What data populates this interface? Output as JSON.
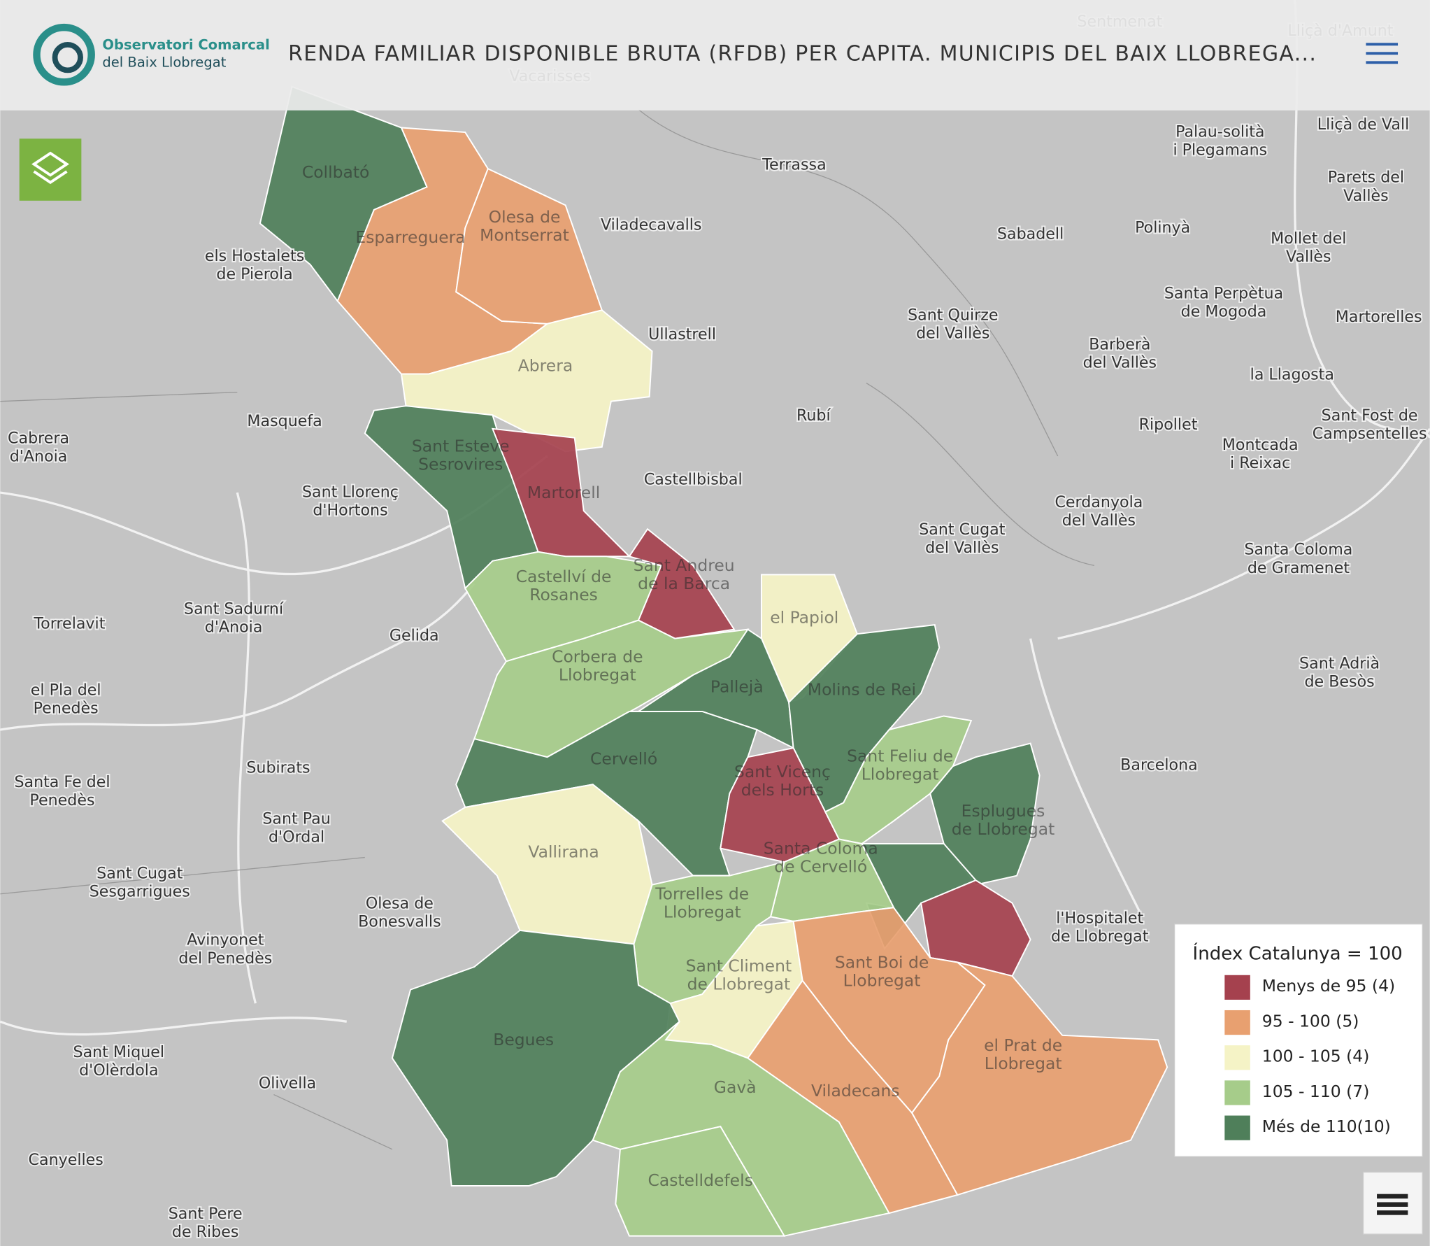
{
  "header": {
    "logo": [
      "Observatori Comarcal",
      "del Baix Llobregat"
    ],
    "title": "RENDA FAMILIAR DISPONIBLE BRUTA (RFDB) PER CAPITA. MUNICIPIS DEL BAIX LLOBREGA..."
  },
  "legend": {
    "title": "Índex Catalunya = 100",
    "items": [
      {
        "label": "Menys de 95 (4)",
        "color": "#a5414e"
      },
      {
        "label": "95 - 100 (5)",
        "color": "#e8a070"
      },
      {
        "label": "100 - 105 (4)",
        "color": "#f5f3c6"
      },
      {
        "label": "105 - 110 (7)",
        "color": "#a6cc8a"
      },
      {
        "label": "Més de 110(10)",
        "color": "#4f7f5a"
      }
    ]
  },
  "regions": [
    {
      "name": [
        "Collbató"
      ],
      "class": 4
    },
    {
      "name": [
        "Esparreguera"
      ],
      "class": 1
    },
    {
      "name": [
        "Olesa de",
        "Montserrat"
      ],
      "class": 1
    },
    {
      "name": [
        "Abrera"
      ],
      "class": 2
    },
    {
      "name": [
        "Sant Esteve",
        "Sesrovires"
      ],
      "class": 4
    },
    {
      "name": [
        "Martorell"
      ],
      "class": 0
    },
    {
      "name": [
        "Sant Andreu",
        "de la Barca"
      ],
      "class": 0
    },
    {
      "name": [
        "Castellví de",
        "Rosanes"
      ],
      "class": 3
    },
    {
      "name": [
        "Corbera de",
        "Llobregat"
      ],
      "class": 3
    },
    {
      "name": [
        "el Papiol"
      ],
      "class": 2
    },
    {
      "name": [
        "Pallejà"
      ],
      "class": 4
    },
    {
      "name": [
        "Molins de Rei"
      ],
      "class": 4
    },
    {
      "name": [
        "Cervelló"
      ],
      "class": 4
    },
    {
      "name": [
        "Sant Vicenç",
        "dels Horts"
      ],
      "class": 0
    },
    {
      "name": [
        "Sant Feliu de",
        "Llobregat"
      ],
      "class": 3
    },
    {
      "name": [
        "Esplugues",
        "de Llobregat"
      ],
      "class": 4
    },
    {
      "name": null,
      "class": 4
    },
    {
      "name": null,
      "class": 0
    },
    {
      "name": [
        "Santa Coloma",
        "de Cervelló"
      ],
      "class": 3
    },
    {
      "name": [
        "Vallirana"
      ],
      "class": 2
    },
    {
      "name": [
        "Torrelles de",
        "Llobregat"
      ],
      "class": 3
    },
    {
      "name": [
        "Sant Climent",
        "de Llobregat"
      ],
      "class": 2
    },
    {
      "name": [
        "Begues"
      ],
      "class": 4
    },
    {
      "name": [
        "Gavà"
      ],
      "class": 3
    },
    {
      "name": [
        "Castelldefels"
      ],
      "class": 3
    },
    {
      "name": [
        "Viladecans"
      ],
      "class": 1
    },
    {
      "name": [
        "Sant Boi de",
        "Llobregat"
      ],
      "class": 1
    },
    {
      "name": [
        "el Prat de",
        "Llobregat"
      ],
      "class": 1
    }
  ],
  "places": [
    {
      "name": [
        "Terrassa"
      ]
    },
    {
      "name": [
        "Viladecavalls"
      ]
    },
    {
      "name": [
        "Sabadell"
      ]
    },
    {
      "name": [
        "Polinyà"
      ]
    },
    {
      "name": [
        "Palau-solità",
        "i Plegamans"
      ]
    },
    {
      "name": [
        "Lliçà de Vall"
      ]
    },
    {
      "name": [
        "Parets del",
        "Vallès"
      ]
    },
    {
      "name": [
        "Mollet del",
        "Vallès"
      ]
    },
    {
      "name": [
        "els Hostalets",
        "de Pierola"
      ]
    },
    {
      "name": [
        "Ullastrell"
      ]
    },
    {
      "name": [
        "Sant Quirze",
        "del Vallès"
      ]
    },
    {
      "name": [
        "Santa Perpètua",
        "de Mogoda"
      ]
    },
    {
      "name": [
        "Martorelles"
      ]
    },
    {
      "name": [
        "Barberà",
        "del Vallès"
      ]
    },
    {
      "name": [
        "la Llagosta"
      ]
    },
    {
      "name": [
        "Masquefa"
      ]
    },
    {
      "name": [
        "Rubí"
      ]
    },
    {
      "name": [
        "Ripollet"
      ]
    },
    {
      "name": [
        "Sant Fost de",
        "Campsentelles"
      ]
    },
    {
      "name": [
        "Cabrera",
        "d'Anoia"
      ]
    },
    {
      "name": [
        "Castellbisbal"
      ]
    },
    {
      "name": [
        "Montcada",
        "i Reixac"
      ]
    },
    {
      "name": [
        "Sant Llorenç",
        "d'Hortons"
      ]
    },
    {
      "name": [
        "Cerdanyola",
        "del Vallès"
      ]
    },
    {
      "name": [
        "Sant Cugat",
        "del Vallès"
      ]
    },
    {
      "name": [
        "Santa Coloma",
        "de Gramenet"
      ]
    },
    {
      "name": [
        "Torrelavit"
      ]
    },
    {
      "name": [
        "Sant Sadurní",
        "d'Anoia"
      ]
    },
    {
      "name": [
        "Gelida"
      ]
    },
    {
      "name": [
        "el Pla del",
        "Penedès"
      ]
    },
    {
      "name": [
        "Sant Adrià",
        "de Besòs"
      ]
    },
    {
      "name": [
        "Subirats"
      ]
    },
    {
      "name": [
        "Barcelona"
      ]
    },
    {
      "name": [
        "Santa Fe del",
        "Penedès"
      ]
    },
    {
      "name": [
        "Sant Pau",
        "d'Ordal"
      ]
    },
    {
      "name": [
        "Sant Cugat",
        "Sesgarrigues"
      ]
    },
    {
      "name": [
        "Olesa de",
        "Bonesvalls"
      ]
    },
    {
      "name": [
        "Avinyonet",
        "del Penedès"
      ]
    },
    {
      "name": [
        "l'Hospitalet",
        "de Llobregat"
      ]
    },
    {
      "name": [
        "Olivella"
      ]
    },
    {
      "name": [
        "Canyelles"
      ]
    },
    {
      "name": [
        "Sant Pere",
        "de Ribes"
      ]
    },
    {
      "name": [
        "Sant Miquel",
        "d'Olèrdola"
      ]
    },
    {
      "name": [
        "Vacarisses"
      ]
    },
    {
      "name": [
        "Sentmenat"
      ]
    },
    {
      "name": [
        "Lliçà d'Amunt"
      ]
    }
  ]
}
